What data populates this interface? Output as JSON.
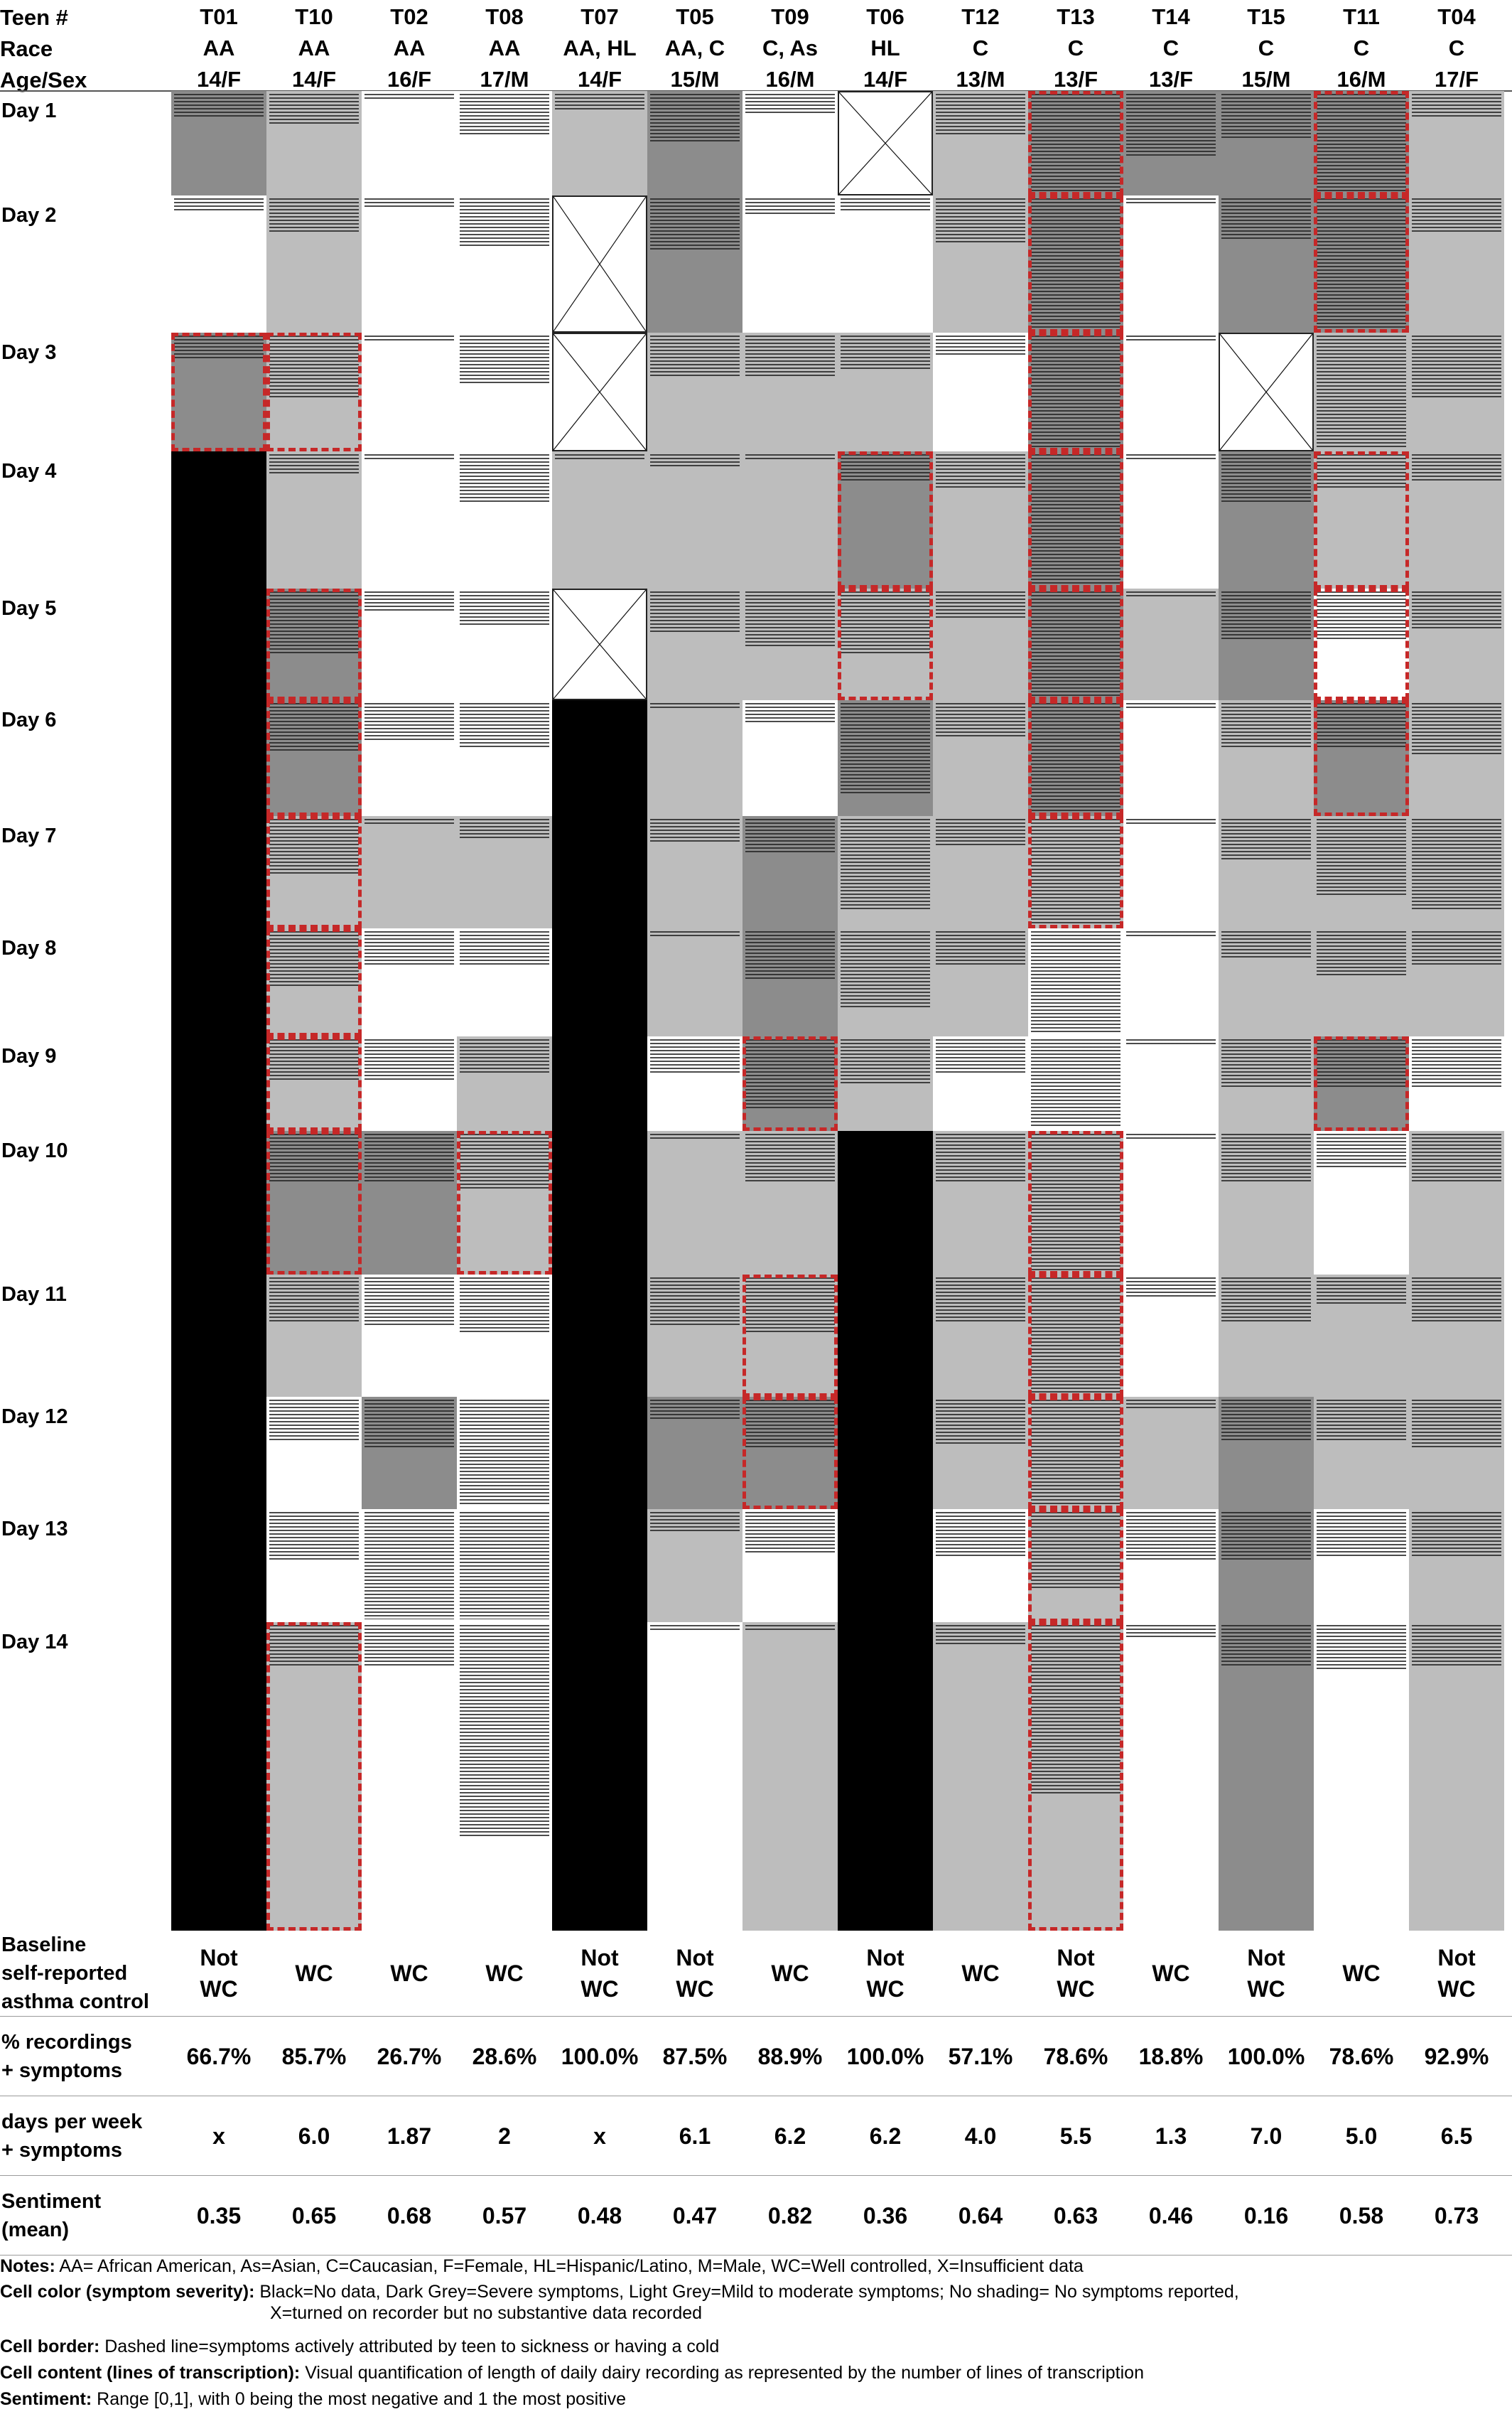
{
  "header": {
    "row_labels": [
      "Teen #",
      "Race",
      "Age/Sex"
    ],
    "teens": [
      {
        "id": "T01",
        "race": "AA",
        "age_sex": "14/F"
      },
      {
        "id": "T10",
        "race": "AA",
        "age_sex": "14/F"
      },
      {
        "id": "T02",
        "race": "AA",
        "age_sex": "16/F"
      },
      {
        "id": "T08",
        "race": "AA",
        "age_sex": "17/M"
      },
      {
        "id": "T07",
        "race": "AA, HL",
        "age_sex": "14/F"
      },
      {
        "id": "T05",
        "race": "AA, C",
        "age_sex": "15/M"
      },
      {
        "id": "T09",
        "race": "C, As",
        "age_sex": "16/M"
      },
      {
        "id": "T06",
        "race": "HL",
        "age_sex": "14/F"
      },
      {
        "id": "T12",
        "race": "C",
        "age_sex": "13/M"
      },
      {
        "id": "T13",
        "race": "C",
        "age_sex": "13/F"
      },
      {
        "id": "T14",
        "race": "C",
        "age_sex": "13/F"
      },
      {
        "id": "T15",
        "race": "C",
        "age_sex": "15/M"
      },
      {
        "id": "T11",
        "race": "C",
        "age_sex": "16/M"
      },
      {
        "id": "T04",
        "race": "C",
        "age_sex": "17/F"
      }
    ]
  },
  "days": [
    "Day 1",
    "Day 2",
    "Day 3",
    "Day 4",
    "Day 5",
    "Day 6",
    "Day 7",
    "Day 8",
    "Day 9",
    "Day 10",
    "Day 11",
    "Day 12",
    "Day 13",
    "Day 14"
  ],
  "legend_colors": {
    "no_data": "#000000",
    "severe": "#8c8c8c",
    "mild_moderate": "#bdbdbd",
    "no_symptoms": "#ffffff",
    "dashed_border": "#c62828"
  },
  "grid": {
    "severity_key": {
      "n": "none",
      "l": "light",
      "d": "dark",
      "b": "black",
      "x": "insufficient"
    },
    "severity": [
      [
        "d",
        "l",
        "n",
        "n",
        "l",
        "d",
        "n",
        "x",
        "l",
        "d",
        "d",
        "d",
        "d",
        "l"
      ],
      [
        "n",
        "l",
        "n",
        "n",
        "x",
        "d",
        "n",
        "n",
        "l",
        "d",
        "n",
        "d",
        "d",
        "l"
      ],
      [
        "d",
        "l",
        "n",
        "n",
        "x",
        "l",
        "l",
        "l",
        "n",
        "d",
        "n",
        "x",
        "l",
        "l"
      ],
      [
        "b",
        "l",
        "n",
        "n",
        "l",
        "l",
        "l",
        "d",
        "l",
        "d",
        "n",
        "d",
        "l",
        "l"
      ],
      [
        "b",
        "d",
        "n",
        "n",
        "x",
        "l",
        "l",
        "l",
        "l",
        "d",
        "l",
        "d",
        "n",
        "l"
      ],
      [
        "b",
        "d",
        "n",
        "n",
        "b",
        "l",
        "n",
        "d",
        "l",
        "d",
        "n",
        "l",
        "d",
        "l"
      ],
      [
        "b",
        "l",
        "l",
        "l",
        "b",
        "l",
        "d",
        "l",
        "l",
        "l",
        "n",
        "l",
        "l",
        "l"
      ],
      [
        "b",
        "l",
        "n",
        "n",
        "b",
        "l",
        "d",
        "l",
        "l",
        "n",
        "n",
        "l",
        "l",
        "l"
      ],
      [
        "b",
        "l",
        "n",
        "l",
        "b",
        "n",
        "d",
        "l",
        "n",
        "n",
        "n",
        "l",
        "d",
        "n"
      ],
      [
        "b",
        "d",
        "d",
        "l",
        "b",
        "l",
        "l",
        "b",
        "l",
        "l",
        "n",
        "l",
        "n",
        "l"
      ],
      [
        "b",
        "l",
        "n",
        "n",
        "b",
        "l",
        "l",
        "b",
        "l",
        "l",
        "n",
        "l",
        "l",
        "l"
      ],
      [
        "b",
        "n",
        "d",
        "n",
        "b",
        "d",
        "d",
        "b",
        "l",
        "l",
        "l",
        "d",
        "l",
        "l"
      ],
      [
        "b",
        "n",
        "n",
        "n",
        "b",
        "l",
        "n",
        "b",
        "n",
        "l",
        "n",
        "d",
        "n",
        "l"
      ],
      [
        "b",
        "l",
        "n",
        "n",
        "b",
        "n",
        "l",
        "b",
        "l",
        "l",
        "n",
        "d",
        "n",
        "l"
      ]
    ],
    "cold_attributed": [
      [
        0,
        0,
        0,
        0,
        0,
        0,
        0,
        0,
        0,
        1,
        0,
        0,
        1,
        0
      ],
      [
        0,
        0,
        0,
        0,
        0,
        0,
        0,
        0,
        0,
        1,
        0,
        0,
        1,
        0
      ],
      [
        1,
        1,
        0,
        0,
        0,
        0,
        0,
        0,
        0,
        1,
        0,
        0,
        0,
        0
      ],
      [
        0,
        0,
        0,
        0,
        0,
        0,
        0,
        1,
        0,
        1,
        0,
        0,
        1,
        0
      ],
      [
        0,
        1,
        0,
        0,
        0,
        0,
        0,
        1,
        0,
        1,
        0,
        0,
        1,
        0
      ],
      [
        0,
        1,
        0,
        0,
        0,
        0,
        0,
        0,
        0,
        1,
        0,
        0,
        1,
        0
      ],
      [
        0,
        1,
        0,
        0,
        0,
        0,
        0,
        0,
        0,
        1,
        0,
        0,
        0,
        0
      ],
      [
        0,
        1,
        0,
        0,
        0,
        0,
        0,
        0,
        0,
        0,
        0,
        0,
        0,
        0
      ],
      [
        0,
        1,
        0,
        0,
        0,
        0,
        1,
        0,
        0,
        0,
        0,
        0,
        1,
        0
      ],
      [
        0,
        1,
        0,
        1,
        0,
        0,
        0,
        0,
        0,
        1,
        0,
        0,
        0,
        0
      ],
      [
        0,
        0,
        0,
        0,
        0,
        0,
        1,
        0,
        0,
        1,
        0,
        0,
        0,
        0
      ],
      [
        0,
        0,
        0,
        0,
        0,
        0,
        1,
        0,
        0,
        1,
        0,
        0,
        0,
        0
      ],
      [
        0,
        0,
        0,
        0,
        0,
        0,
        0,
        0,
        0,
        1,
        0,
        0,
        0,
        0
      ],
      [
        0,
        1,
        0,
        0,
        0,
        0,
        0,
        0,
        0,
        1,
        0,
        0,
        0,
        0
      ]
    ],
    "transcript_lines": [
      [
        7,
        9,
        2,
        12,
        5,
        14,
        6,
        3,
        12,
        60,
        18,
        13,
        50,
        7
      ],
      [
        4,
        10,
        3,
        14,
        3,
        15,
        5,
        4,
        13,
        60,
        2,
        12,
        48,
        10
      ],
      [
        7,
        18,
        2,
        14,
        2,
        12,
        12,
        10,
        6,
        60,
        2,
        0,
        55,
        18
      ],
      [
        0,
        6,
        2,
        14,
        2,
        4,
        2,
        8,
        10,
        50,
        2,
        14,
        10,
        8
      ],
      [
        0,
        18,
        6,
        10,
        0,
        12,
        16,
        18,
        8,
        48,
        2,
        14,
        14,
        11
      ],
      [
        0,
        14,
        11,
        13,
        0,
        2,
        6,
        26,
        10,
        44,
        2,
        13,
        13,
        15
      ],
      [
        0,
        16,
        2,
        6,
        0,
        7,
        10,
        26,
        8,
        30,
        2,
        12,
        22,
        26
      ],
      [
        0,
        16,
        10,
        10,
        0,
        2,
        14,
        22,
        10,
        50,
        2,
        8,
        13,
        10
      ],
      [
        0,
        12,
        12,
        10,
        0,
        10,
        20,
        13,
        10,
        30,
        2,
        14,
        14,
        14
      ],
      [
        0,
        14,
        14,
        16,
        0,
        2,
        14,
        0,
        14,
        55,
        2,
        14,
        10,
        14
      ],
      [
        0,
        13,
        14,
        16,
        0,
        14,
        16,
        0,
        13,
        42,
        6,
        13,
        8,
        13
      ],
      [
        0,
        12,
        14,
        55,
        0,
        6,
        14,
        0,
        13,
        40,
        3,
        12,
        12,
        14
      ],
      [
        0,
        14,
        40,
        60,
        0,
        6,
        12,
        0,
        13,
        22,
        14,
        14,
        13,
        13
      ],
      [
        0,
        12,
        12,
        60,
        0,
        2,
        2,
        0,
        6,
        48,
        4,
        12,
        13,
        12
      ]
    ]
  },
  "summary": {
    "rows": [
      {
        "label": [
          "Baseline",
          "self-reported",
          "asthma control"
        ],
        "values": [
          "Not WC",
          "WC",
          "WC",
          "WC",
          "Not WC",
          "Not WC",
          "WC",
          "Not WC",
          "WC",
          "Not WC",
          "WC",
          "Not WC",
          "WC",
          "Not WC"
        ]
      },
      {
        "label": [
          "% recordings",
          "+ symptoms"
        ],
        "values": [
          "66.7%",
          "85.7%",
          "26.7%",
          "28.6%",
          "100.0%",
          "87.5%",
          "88.9%",
          "100.0%",
          "57.1%",
          "78.6%",
          "18.8%",
          "100.0%",
          "78.6%",
          "92.9%"
        ]
      },
      {
        "label": [
          "days per week",
          "+ symptoms"
        ],
        "values": [
          "x",
          "6.0",
          "1.87",
          "2",
          "x",
          "6.1",
          "6.2",
          "6.2",
          "4.0",
          "5.5",
          "1.3",
          "7.0",
          "5.0",
          "6.5"
        ]
      },
      {
        "label": [
          "Sentiment",
          "(mean)"
        ],
        "values": [
          "0.35",
          "0.65",
          "0.68",
          "0.57",
          "0.48",
          "0.47",
          "0.82",
          "0.36",
          "0.64",
          "0.63",
          "0.46",
          "0.16",
          "0.58",
          "0.73"
        ]
      }
    ]
  },
  "notes": [
    {
      "key": "Notes:",
      "text": " AA= African American, As=Asian, C=Caucasian, F=Female, HL=Hispanic/Latino, M=Male, WC=Well controlled, X=Insufficient data",
      "cont": ""
    },
    {
      "key": "Cell color (symptom severity):",
      "text": " Black=No data, Dark Grey=Severe symptoms, Light Grey=Mild to moderate symptoms; No shading= No symptoms reported,",
      "cont": "X=turned on recorder but no substantive data recorded"
    },
    {
      "key": "Cell border:",
      "text": " Dashed line=symptoms actively attributed by teen to sickness or having a cold",
      "cont": ""
    },
    {
      "key": "Cell content (lines of transcription):",
      "text": " Visual quantification of length of daily dairy recording as represented by the number of lines of transcription",
      "cont": ""
    },
    {
      "key": "Sentiment:",
      "text": " Range [0,1], with 0 being the most negative and 1 the most positive",
      "cont": ""
    }
  ]
}
